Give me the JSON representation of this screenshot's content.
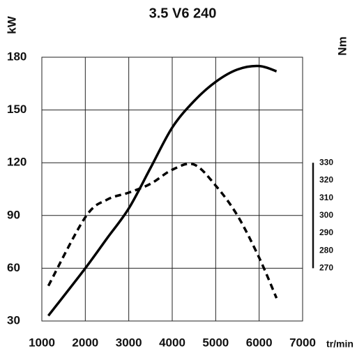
{
  "chart_data": {
    "type": "line",
    "title": "3.5 V6 240",
    "y_label": "kW",
    "y2_label": "Nm",
    "x_label": "tr/min",
    "xlim": [
      1000,
      7000
    ],
    "xticks": [
      1000,
      2000,
      3000,
      4000,
      5000,
      6000,
      7000
    ],
    "ylim": [
      30,
      180
    ],
    "yticks": [
      30,
      60,
      90,
      120,
      150,
      180
    ],
    "y2lim": [
      240,
      390
    ],
    "y2ticks": [
      270,
      280,
      290,
      300,
      310,
      320,
      330
    ],
    "grid": true,
    "x": [
      1150,
      2000,
      2500,
      3000,
      3500,
      4000,
      4500,
      5000,
      5500,
      6000,
      6400
    ],
    "series": [
      {
        "color": "#000000",
        "dashed": false,
        "values": [
          33,
          60,
          77,
          94,
          117,
          140,
          155,
          166,
          173,
          175,
          172
        ]
      },
      {
        "color": "#000000",
        "dashed": true,
        "axis": "y2",
        "values": [
          260,
          299,
          309,
          313,
          318,
          326,
          329,
          317,
          300,
          276,
          253
        ]
      }
    ]
  }
}
